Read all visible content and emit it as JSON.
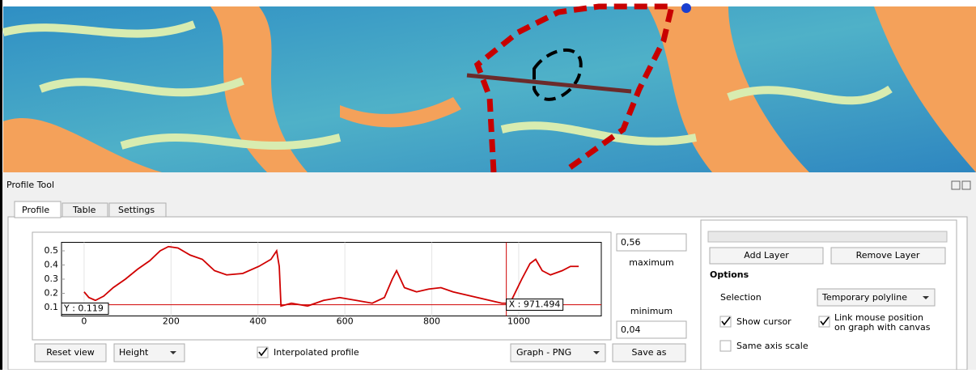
{
  "window": {
    "title": "Profile Tool",
    "tabs": [
      "Profile",
      "Table",
      "Settings"
    ]
  },
  "graph": {
    "type": "line",
    "color": "#d00000",
    "x": [
      0,
      11,
      26,
      45,
      67,
      95,
      123,
      151,
      175,
      194,
      216,
      244,
      272,
      300,
      328,
      365,
      402,
      430,
      443,
      449,
      453,
      477,
      514,
      551,
      588,
      626,
      663,
      691,
      709,
      719,
      737,
      765,
      793,
      821,
      849,
      877,
      905,
      933,
      961,
      980,
      1007,
      1026,
      1039,
      1054,
      1073,
      1100,
      1119,
      1138
    ],
    "values": [
      0.21,
      0.17,
      0.15,
      0.18,
      0.24,
      0.3,
      0.37,
      0.43,
      0.5,
      0.53,
      0.52,
      0.47,
      0.44,
      0.36,
      0.33,
      0.34,
      0.39,
      0.44,
      0.5,
      0.39,
      0.11,
      0.13,
      0.11,
      0.15,
      0.17,
      0.15,
      0.13,
      0.17,
      0.3,
      0.36,
      0.24,
      0.21,
      0.23,
      0.24,
      0.21,
      0.19,
      0.17,
      0.15,
      0.13,
      0.13,
      0.3,
      0.41,
      0.44,
      0.36,
      0.33,
      0.36,
      0.39,
      0.39
    ],
    "xlim": [
      -52,
      1190
    ],
    "ylim": [
      0.04,
      0.56
    ],
    "xticks": [
      0,
      200,
      400,
      600,
      800,
      1000
    ],
    "yticks": [
      0.1,
      0.2,
      0.3,
      0.4,
      0.5
    ],
    "cursor_x": 971.494,
    "cursor_y": 0.119,
    "cursor_x_label": "X : 971.494",
    "cursor_y_label": "Y : 0.119"
  },
  "controls": {
    "max_value": "0,56",
    "max_label": "maximum",
    "min_value": "0,04",
    "min_label": "minimum",
    "reset_view": "Reset view",
    "mode": "Height",
    "interpolated": "Interpolated profile",
    "export_format": "Graph - PNG",
    "save_as": "Save as"
  },
  "layers": {
    "add_layer": "Add Layer",
    "remove_layer": "Remove Layer"
  },
  "options": {
    "title": "Options",
    "selection_label": "Selection",
    "selection_value": "Temporary polyline",
    "show_cursor": "Show cursor",
    "link_line1": "Link mouse position",
    "link_line2": "on graph with canvas",
    "same_axis_scale": "Same axis scale"
  }
}
